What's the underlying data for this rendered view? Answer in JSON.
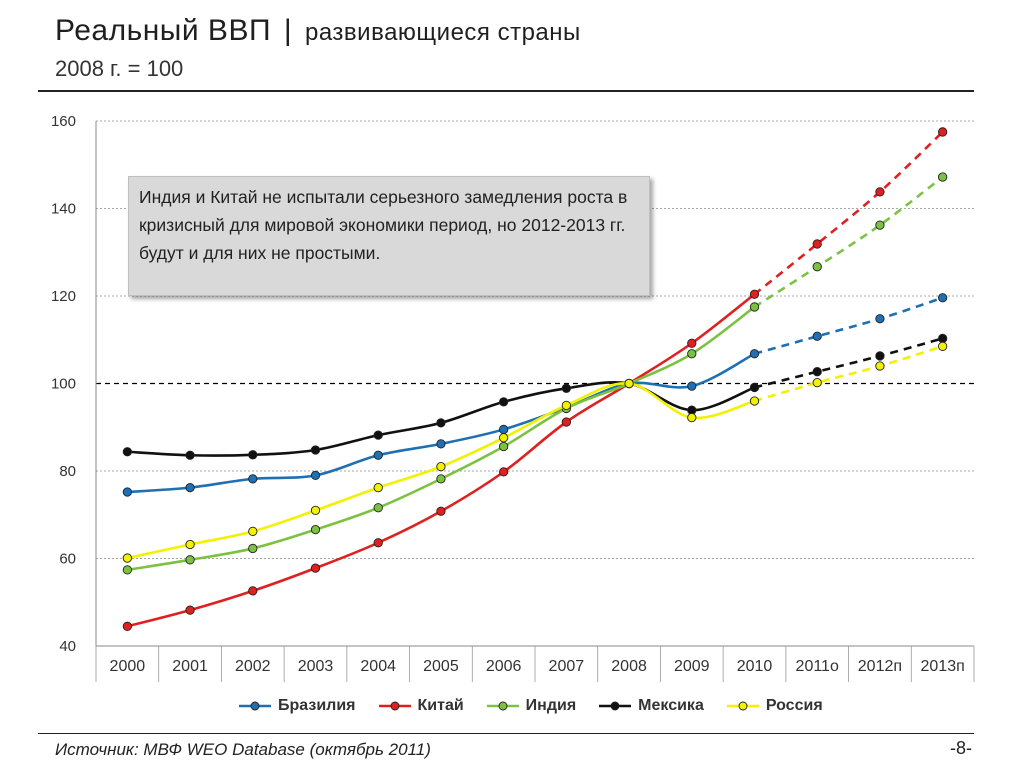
{
  "title": {
    "cap": "Р",
    "rest_main": "еальный ВВП",
    "separator": "|",
    "rest": "развивающиеся страны",
    "subtitle": "2008 г. = 100"
  },
  "callout": "Индия и Китай не испытали серьезного замедления роста в кризисный для мировой экономики период, но 2012-2013 гг. будут и для них не простыми.",
  "source": "Источник: МВФ WEO Database (октябрь 2011)",
  "page_number": "-8-",
  "chart_data": {
    "type": "line",
    "title": "Реальный ВВП | развивающиеся страны",
    "subtitle": "2008 г. = 100",
    "categories": [
      "2000",
      "2001",
      "2002",
      "2003",
      "2004",
      "2005",
      "2006",
      "2007",
      "2008",
      "2009",
      "2010",
      "2011о",
      "2012п",
      "2013п"
    ],
    "ylim": [
      40,
      160
    ],
    "yticks": [
      40,
      60,
      80,
      100,
      120,
      140,
      160
    ],
    "reference_line": 100,
    "forecast_start_index": 11,
    "series": [
      {
        "name": "Бразилия",
        "color": "#1f6fb2",
        "values": [
          75.2,
          76.2,
          78.2,
          79.0,
          83.6,
          86.2,
          89.5,
          94.5,
          100,
          99.4,
          106.8,
          110.8,
          114.8,
          119.6
        ]
      },
      {
        "name": "Китай",
        "color": "#e02020",
        "values": [
          44.5,
          48.2,
          52.6,
          57.8,
          63.6,
          70.8,
          79.8,
          91.2,
          100,
          109.2,
          120.4,
          131.9,
          143.8,
          157.5
        ]
      },
      {
        "name": "Индия",
        "color": "#7cc242",
        "values": [
          57.4,
          59.7,
          62.3,
          66.6,
          71.6,
          78.2,
          85.6,
          94.3,
          100,
          106.8,
          117.5,
          126.7,
          136.2,
          147.2
        ]
      },
      {
        "name": "Мексика",
        "color": "#111111",
        "values": [
          84.4,
          83.6,
          83.7,
          84.8,
          88.2,
          91.0,
          95.8,
          98.9,
          100,
          93.9,
          99.1,
          102.7,
          106.3,
          110.3
        ]
      },
      {
        "name": "Россия",
        "color": "#f2f200",
        "values": [
          60.1,
          63.2,
          66.2,
          71.0,
          76.2,
          81.0,
          87.6,
          95.0,
          100,
          92.2,
          96.0,
          100.2,
          104.0,
          108.5
        ]
      }
    ]
  }
}
